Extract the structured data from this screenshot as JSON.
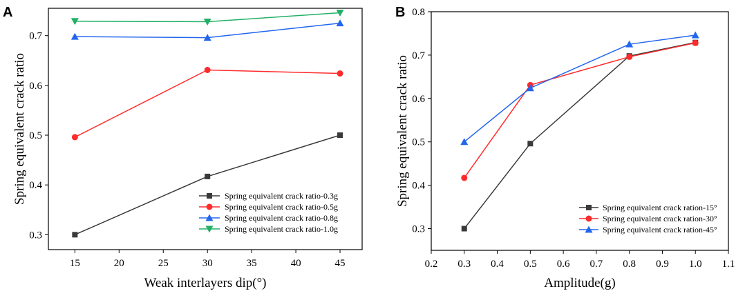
{
  "chart_data": [
    {
      "panel": "A",
      "type": "line",
      "title": "",
      "xlabel": "Weak interlayers dip(°)",
      "ylabel": "Spring equivalent crack ratio",
      "xlim": [
        12,
        47.5
      ],
      "ylim": [
        0.27,
        0.755
      ],
      "xticks": [
        15,
        20,
        25,
        30,
        35,
        40,
        45
      ],
      "yticks": [
        0.3,
        0.4,
        0.5,
        0.6,
        0.7
      ],
      "legend_position": "bottom-right",
      "x": [
        15,
        30,
        45
      ],
      "series": [
        {
          "name": "Spring equivalent crack ratio-0.3g",
          "values": [
            0.3,
            0.417,
            0.5
          ],
          "color": "#3a3a3a",
          "marker": "square"
        },
        {
          "name": "Spring equivalent crack ratio-0.5g",
          "values": [
            0.496,
            0.631,
            0.624
          ],
          "color": "#ff2b2b",
          "marker": "circle"
        },
        {
          "name": "Spring equivalent crack ratio-0.8g",
          "values": [
            0.698,
            0.696,
            0.725
          ],
          "color": "#2266ee",
          "marker": "triangle-up"
        },
        {
          "name": "Spring equivalent crack ratio-1.0g",
          "values": [
            0.729,
            0.728,
            0.746
          ],
          "color": "#22b066",
          "marker": "triangle-down"
        }
      ]
    },
    {
      "panel": "B",
      "type": "line",
      "title": "",
      "xlabel": "Amplitude(g)",
      "ylabel": "Spring equivalent crack ratio",
      "xlim": [
        0.2,
        1.1
      ],
      "ylim": [
        0.25,
        0.8
      ],
      "xticks": [
        0.2,
        0.3,
        0.4,
        0.5,
        0.6,
        0.7,
        0.8,
        0.9,
        1.0,
        1.1
      ],
      "yticks": [
        0.3,
        0.4,
        0.5,
        0.6,
        0.7,
        0.8
      ],
      "legend_position": "bottom-right",
      "x": [
        0.3,
        0.5,
        0.8,
        1.0
      ],
      "series": [
        {
          "name": "Spring equivalent crack ration-15°",
          "values": [
            0.3,
            0.496,
            0.698,
            0.729
          ],
          "color": "#3a3a3a",
          "marker": "square"
        },
        {
          "name": "Spring equivalent crack ration-30°",
          "values": [
            0.417,
            0.631,
            0.696,
            0.728
          ],
          "color": "#ff2b2b",
          "marker": "circle"
        },
        {
          "name": "Spring equivalent crack ration-45°",
          "values": [
            0.5,
            0.624,
            0.725,
            0.746
          ],
          "color": "#2266ee",
          "marker": "triangle-up"
        }
      ]
    }
  ]
}
